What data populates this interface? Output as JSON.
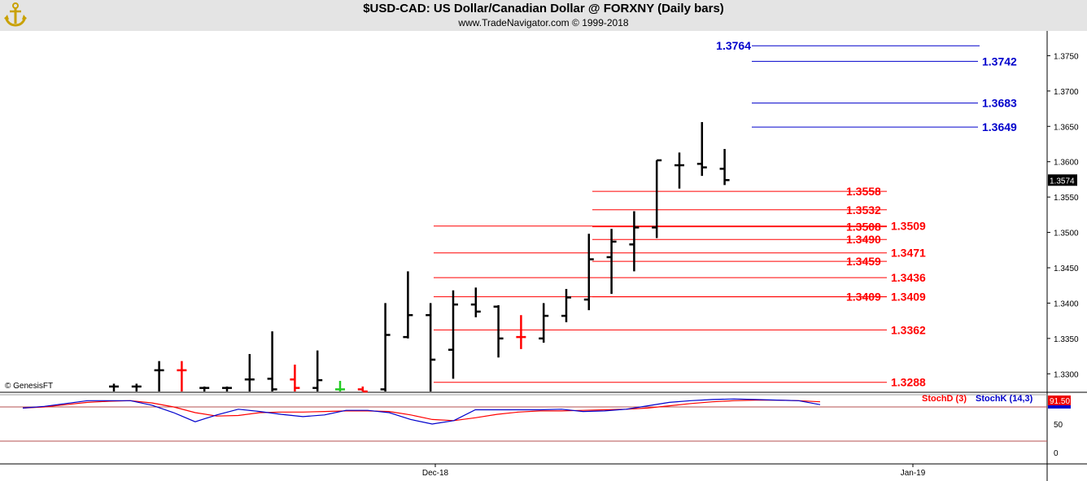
{
  "header": {
    "title": "$USD-CAD:  US Dollar/Canadian Dollar @ FORXNY  (Daily bars)",
    "subtitle": "www.TradeNavigator.com © 1999-2018"
  },
  "footer": {
    "copyright": "© GenesisFT"
  },
  "colors": {
    "up_bar": "#000000",
    "down_bar": "#ff0000",
    "green_bar": "#22cc22",
    "blue_levels": "#0000cc",
    "red_levels": "#dd0000",
    "stoch_d": "#cc0000",
    "stoch_k": "#0000cc"
  },
  "chart_data": [
    {
      "type": "ohlc",
      "x_labels": [
        "Dec-18",
        "Jan-19"
      ],
      "ylim": [
        1.3275,
        1.3785
      ],
      "y_ticks": [
        "1.3300",
        "1.3350",
        "1.3400",
        "1.3450",
        "1.3500",
        "1.3550",
        "1.3600",
        "1.3650",
        "1.3700",
        "1.3750"
      ],
      "last_price": "1.3574",
      "bars": [
        {
          "o": 1.3282,
          "h": 1.3286,
          "l": 1.327,
          "c": 1.3282,
          "color": "black"
        },
        {
          "o": 1.3282,
          "h": 1.3286,
          "l": 1.327,
          "c": 1.3282,
          "color": "black"
        },
        {
          "o": 1.3305,
          "h": 1.3318,
          "l": 1.327,
          "c": 1.3305,
          "color": "black"
        },
        {
          "o": 1.3305,
          "h": 1.3318,
          "l": 1.327,
          "c": 1.3305,
          "color": "red"
        },
        {
          "o": 1.328,
          "h": 1.3282,
          "l": 1.327,
          "c": 1.328,
          "color": "black"
        },
        {
          "o": 1.328,
          "h": 1.3282,
          "l": 1.327,
          "c": 1.328,
          "color": "black"
        },
        {
          "o": 1.3292,
          "h": 1.3328,
          "l": 1.327,
          "c": 1.3292,
          "color": "black"
        },
        {
          "o": 1.3293,
          "h": 1.336,
          "l": 1.327,
          "c": 1.3278,
          "color": "black"
        },
        {
          "o": 1.3292,
          "h": 1.3313,
          "l": 1.327,
          "c": 1.328,
          "color": "red"
        },
        {
          "o": 1.328,
          "h": 1.3333,
          "l": 1.327,
          "c": 1.3291,
          "color": "black"
        },
        {
          "o": 1.3278,
          "h": 1.329,
          "l": 1.327,
          "c": 1.3278,
          "color": "green"
        },
        {
          "o": 1.3278,
          "h": 1.3282,
          "l": 1.327,
          "c": 1.3275,
          "color": "red"
        },
        {
          "o": 1.3278,
          "h": 1.34,
          "l": 1.327,
          "c": 1.3355,
          "color": "black"
        },
        {
          "o": 1.3352,
          "h": 1.3445,
          "l": 1.335,
          "c": 1.3383,
          "color": "black"
        },
        {
          "o": 1.3383,
          "h": 1.34,
          "l": 1.327,
          "c": 1.332,
          "color": "black"
        },
        {
          "o": 1.3334,
          "h": 1.3418,
          "l": 1.3293,
          "c": 1.3398,
          "color": "black"
        },
        {
          "o": 1.3398,
          "h": 1.3422,
          "l": 1.338,
          "c": 1.3388,
          "color": "black"
        },
        {
          "o": 1.3395,
          "h": 1.3397,
          "l": 1.3323,
          "c": 1.335,
          "color": "black"
        },
        {
          "o": 1.3352,
          "h": 1.3383,
          "l": 1.3335,
          "c": 1.3352,
          "color": "red"
        },
        {
          "o": 1.335,
          "h": 1.34,
          "l": 1.3344,
          "c": 1.3382,
          "color": "black"
        },
        {
          "o": 1.3382,
          "h": 1.342,
          "l": 1.3373,
          "c": 1.3408,
          "color": "black"
        },
        {
          "o": 1.3405,
          "h": 1.3498,
          "l": 1.339,
          "c": 1.3462,
          "color": "black"
        },
        {
          "o": 1.3465,
          "h": 1.3505,
          "l": 1.3413,
          "c": 1.3487,
          "color": "black"
        },
        {
          "o": 1.3483,
          "h": 1.353,
          "l": 1.3445,
          "c": 1.3507,
          "color": "black"
        },
        {
          "o": 1.3507,
          "h": 1.3602,
          "l": 1.3492,
          "c": 1.3602,
          "color": "black"
        },
        {
          "o": 1.3595,
          "h": 1.3613,
          "l": 1.3562,
          "c": 1.3595,
          "color": "black"
        },
        {
          "o": 1.3597,
          "h": 1.3656,
          "l": 1.358,
          "c": 1.3592,
          "color": "black"
        },
        {
          "o": 1.359,
          "h": 1.3618,
          "l": 1.3567,
          "c": 1.3574,
          "color": "black"
        }
      ],
      "levels": [
        {
          "value": 1.3764,
          "label": "1.3764",
          "color": "blue",
          "start_bar": 24,
          "label_side": "left"
        },
        {
          "value": 1.3742,
          "label": "1.3742",
          "color": "blue",
          "start_bar": 24,
          "label_side": "right"
        },
        {
          "value": 1.3683,
          "label": "1.3683",
          "color": "blue",
          "start_bar": 24,
          "label_side": "right"
        },
        {
          "value": 1.3649,
          "label": "1.3649",
          "color": "blue",
          "start_bar": 24,
          "label_side": "right"
        },
        {
          "value": 1.3558,
          "label": "1.3558",
          "color": "red",
          "start_bar": 18,
          "label_side": "mid"
        },
        {
          "value": 1.3532,
          "label": "1.3532",
          "color": "red",
          "start_bar": 18,
          "label_side": "mid"
        },
        {
          "value": 1.3508,
          "label": "1.3508",
          "color": "red",
          "start_bar": 18,
          "label_side": "mid"
        },
        {
          "value": 1.349,
          "label": "1.3490",
          "color": "red",
          "start_bar": 18,
          "label_side": "mid"
        },
        {
          "value": 1.3459,
          "label": "1.3459",
          "color": "red",
          "start_bar": 18,
          "label_side": "mid"
        },
        {
          "value": 1.3409,
          "label": "1.3409",
          "color": "red",
          "start_bar": 18,
          "label_side": "mid"
        },
        {
          "value": 1.3509,
          "label": "1.3509",
          "color": "red",
          "start_bar": 10,
          "label_side": "right"
        },
        {
          "value": 1.3471,
          "label": "1.3471",
          "color": "red",
          "start_bar": 10,
          "label_side": "right"
        },
        {
          "value": 1.3436,
          "label": "1.3436",
          "color": "red",
          "start_bar": 10,
          "label_side": "right"
        },
        {
          "value": 1.3409,
          "label": "1.3409",
          "color": "red",
          "start_bar": 10,
          "label_side": "right"
        },
        {
          "value": 1.3362,
          "label": "1.3362",
          "color": "red",
          "start_bar": 10,
          "label_side": "right"
        },
        {
          "value": 1.3288,
          "label": "1.3288",
          "color": "red",
          "start_bar": 10,
          "label_side": "right"
        }
      ]
    },
    {
      "type": "line",
      "ylim": [
        0,
        100
      ],
      "y_ticks": [
        "0",
        "50"
      ],
      "reference_lines": [
        20,
        80
      ],
      "last_value": "91.50",
      "series": [
        {
          "name": "StochD (3)",
          "color": "red",
          "values": [
            78,
            80,
            84,
            88,
            90,
            91,
            87,
            80,
            70,
            64,
            65,
            70,
            71,
            71,
            72,
            73,
            73,
            72,
            66,
            58,
            56,
            61,
            67,
            71,
            73,
            73,
            74,
            75,
            76,
            78,
            82,
            86,
            89,
            91,
            92,
            92,
            91,
            89
          ]
        },
        {
          "name": "StochK (14,3)",
          "color": "blue",
          "values": [
            78,
            81,
            86,
            91,
            91,
            91,
            83,
            70,
            54,
            66,
            76,
            72,
            67,
            63,
            66,
            74,
            74,
            70,
            58,
            50,
            56,
            75,
            75,
            75,
            75,
            76,
            72,
            73,
            76,
            82,
            88,
            91,
            93,
            94,
            93,
            92,
            91,
            84
          ]
        }
      ]
    }
  ]
}
